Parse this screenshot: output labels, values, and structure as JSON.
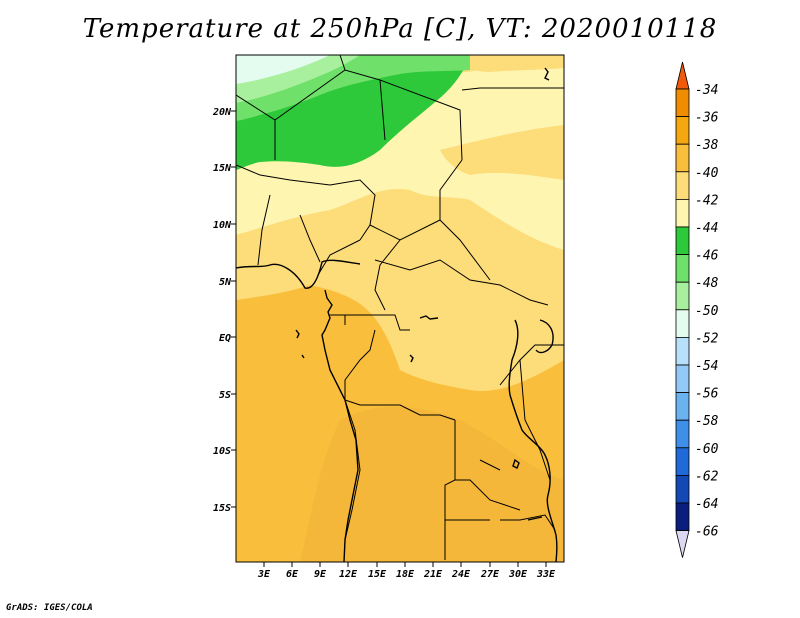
{
  "title": "Temperature at 250hPa [C], VT: 2020010118",
  "footer": "GrADS: IGES/COLA",
  "map": {
    "lat_labels": [
      "20N",
      "15N",
      "10N",
      "5N",
      "EQ",
      "5S",
      "10S",
      "15S"
    ],
    "lon_labels": [
      "3E",
      "6E",
      "9E",
      "12E",
      "15E",
      "18E",
      "21E",
      "24E",
      "27E",
      "30E",
      "33E"
    ]
  },
  "colorbar": {
    "levels": [
      "-34",
      "-36",
      "-38",
      "-40",
      "-42",
      "-44",
      "-46",
      "-48",
      "-50",
      "-52",
      "-54",
      "-56",
      "-58",
      "-60",
      "-62",
      "-64",
      "-66"
    ],
    "colors": [
      "#f05a0a",
      "#f08c00",
      "#f4a70e",
      "#f9bf3c",
      "#fddc7a",
      "#fef5b0",
      "#2ec93a",
      "#6fe06a",
      "#a8f09e",
      "#e4fcf0",
      "#b8e0fb",
      "#93c9f6",
      "#6ab2f0",
      "#3f8fe8",
      "#2069d8",
      "#1448b4",
      "#0a1e7e",
      "#dcd8f2"
    ]
  }
}
